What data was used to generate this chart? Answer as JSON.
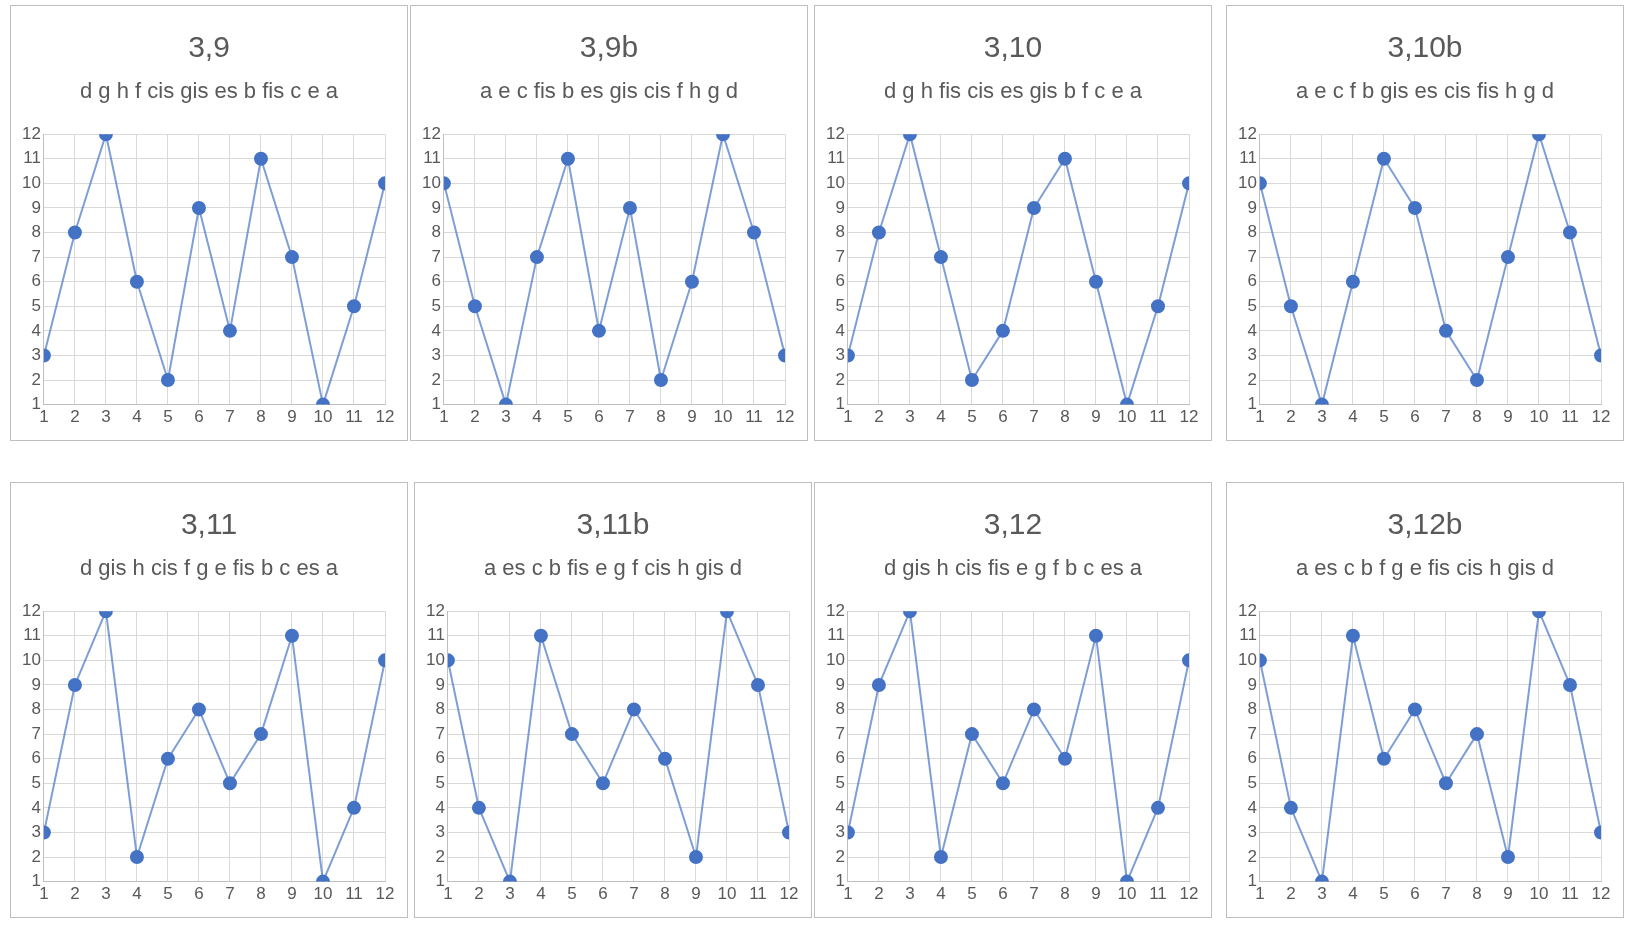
{
  "chart_data": [
    {
      "type": "line",
      "title": "3,9",
      "subtitle": "d g h f cis gis es b fis c e a",
      "x": [
        1,
        2,
        3,
        4,
        5,
        6,
        7,
        8,
        9,
        10,
        11,
        12
      ],
      "xlim": [
        1,
        12
      ],
      "xticks": [
        1,
        2,
        3,
        4,
        5,
        6,
        7,
        8,
        9,
        10,
        11,
        12
      ],
      "ylim": [
        1,
        12
      ],
      "yticks": [
        1,
        2,
        3,
        4,
        5,
        6,
        7,
        8,
        9,
        10,
        11,
        12
      ],
      "grid": true,
      "marker": "circle",
      "series": [
        {
          "color": "#4472c4",
          "values": [
            3,
            8,
            12,
            6,
            2,
            9,
            4,
            11,
            7,
            1,
            5,
            10
          ]
        }
      ]
    },
    {
      "type": "line",
      "title": "3,9b",
      "subtitle": "a e c fis b es gis cis f h g d",
      "x": [
        1,
        2,
        3,
        4,
        5,
        6,
        7,
        8,
        9,
        10,
        11,
        12
      ],
      "xlim": [
        1,
        12
      ],
      "xticks": [
        1,
        2,
        3,
        4,
        5,
        6,
        7,
        8,
        9,
        10,
        11,
        12
      ],
      "ylim": [
        1,
        12
      ],
      "yticks": [
        1,
        2,
        3,
        4,
        5,
        6,
        7,
        8,
        9,
        10,
        11,
        12
      ],
      "grid": true,
      "marker": "circle",
      "series": [
        {
          "color": "#4472c4",
          "values": [
            10,
            5,
            1,
            7,
            11,
            4,
            9,
            2,
            6,
            12,
            8,
            3
          ]
        }
      ]
    },
    {
      "type": "line",
      "title": "3,10",
      "subtitle": "d g h fis cis es gis b f c e a",
      "x": [
        1,
        2,
        3,
        4,
        5,
        6,
        7,
        8,
        9,
        10,
        11,
        12
      ],
      "xlim": [
        1,
        12
      ],
      "xticks": [
        1,
        2,
        3,
        4,
        5,
        6,
        7,
        8,
        9,
        10,
        11,
        12
      ],
      "ylim": [
        1,
        12
      ],
      "yticks": [
        1,
        2,
        3,
        4,
        5,
        6,
        7,
        8,
        9,
        10,
        11,
        12
      ],
      "grid": true,
      "marker": "circle",
      "series": [
        {
          "color": "#4472c4",
          "values": [
            3,
            8,
            12,
            7,
            2,
            4,
            9,
            11,
            6,
            1,
            5,
            10
          ]
        }
      ]
    },
    {
      "type": "line",
      "title": "3,10b",
      "subtitle": "a e c f b gis es cis fis h g d",
      "x": [
        1,
        2,
        3,
        4,
        5,
        6,
        7,
        8,
        9,
        10,
        11,
        12
      ],
      "xlim": [
        1,
        12
      ],
      "xticks": [
        1,
        2,
        3,
        4,
        5,
        6,
        7,
        8,
        9,
        10,
        11,
        12
      ],
      "ylim": [
        1,
        12
      ],
      "yticks": [
        1,
        2,
        3,
        4,
        5,
        6,
        7,
        8,
        9,
        10,
        11,
        12
      ],
      "grid": true,
      "marker": "circle",
      "series": [
        {
          "color": "#4472c4",
          "values": [
            10,
            5,
            1,
            6,
            11,
            9,
            4,
            2,
            7,
            12,
            8,
            3
          ]
        }
      ]
    },
    {
      "type": "line",
      "title": "3,11",
      "subtitle": "d gis h cis f g e fis b c es a",
      "x": [
        1,
        2,
        3,
        4,
        5,
        6,
        7,
        8,
        9,
        10,
        11,
        12
      ],
      "xlim": [
        1,
        12
      ],
      "xticks": [
        1,
        2,
        3,
        4,
        5,
        6,
        7,
        8,
        9,
        10,
        11,
        12
      ],
      "ylim": [
        1,
        12
      ],
      "yticks": [
        1,
        2,
        3,
        4,
        5,
        6,
        7,
        8,
        9,
        10,
        11,
        12
      ],
      "grid": true,
      "marker": "circle",
      "series": [
        {
          "color": "#4472c4",
          "values": [
            3,
            9,
            12,
            2,
            6,
            8,
            5,
            7,
            11,
            1,
            4,
            10
          ]
        }
      ]
    },
    {
      "type": "line",
      "title": "3,11b",
      "subtitle": "a es c b fis e g f cis h gis d",
      "x": [
        1,
        2,
        3,
        4,
        5,
        6,
        7,
        8,
        9,
        10,
        11,
        12
      ],
      "xlim": [
        1,
        12
      ],
      "xticks": [
        1,
        2,
        3,
        4,
        5,
        6,
        7,
        8,
        9,
        10,
        11,
        12
      ],
      "ylim": [
        1,
        12
      ],
      "yticks": [
        1,
        2,
        3,
        4,
        5,
        6,
        7,
        8,
        9,
        10,
        11,
        12
      ],
      "grid": true,
      "marker": "circle",
      "series": [
        {
          "color": "#4472c4",
          "values": [
            10,
            4,
            1,
            11,
            7,
            5,
            8,
            6,
            2,
            12,
            9,
            3
          ]
        }
      ]
    },
    {
      "type": "line",
      "title": "3,12",
      "subtitle": "d gis h cis fis e g f b c es a",
      "x": [
        1,
        2,
        3,
        4,
        5,
        6,
        7,
        8,
        9,
        10,
        11,
        12
      ],
      "xlim": [
        1,
        12
      ],
      "xticks": [
        1,
        2,
        3,
        4,
        5,
        6,
        7,
        8,
        9,
        10,
        11,
        12
      ],
      "ylim": [
        1,
        12
      ],
      "yticks": [
        1,
        2,
        3,
        4,
        5,
        6,
        7,
        8,
        9,
        10,
        11,
        12
      ],
      "grid": true,
      "marker": "circle",
      "series": [
        {
          "color": "#4472c4",
          "values": [
            3,
            9,
            12,
            2,
            7,
            5,
            8,
            6,
            11,
            1,
            4,
            10
          ]
        }
      ]
    },
    {
      "type": "line",
      "title": "3,12b",
      "subtitle": "a es c b f g e fis cis h gis d",
      "x": [
        1,
        2,
        3,
        4,
        5,
        6,
        7,
        8,
        9,
        10,
        11,
        12
      ],
      "xlim": [
        1,
        12
      ],
      "xticks": [
        1,
        2,
        3,
        4,
        5,
        6,
        7,
        8,
        9,
        10,
        11,
        12
      ],
      "ylim": [
        1,
        12
      ],
      "yticks": [
        1,
        2,
        3,
        4,
        5,
        6,
        7,
        8,
        9,
        10,
        11,
        12
      ],
      "grid": true,
      "marker": "circle",
      "series": [
        {
          "color": "#4472c4",
          "values": [
            10,
            4,
            1,
            11,
            6,
            8,
            5,
            7,
            2,
            12,
            9,
            3
          ]
        }
      ]
    }
  ]
}
